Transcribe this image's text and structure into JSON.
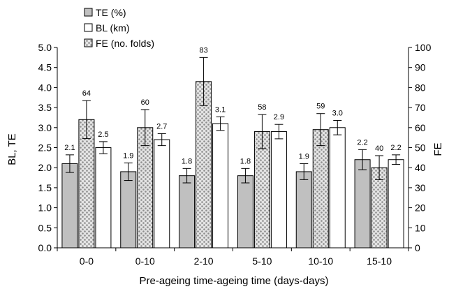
{
  "chart_data": {
    "type": "bar",
    "categories": [
      "0-0",
      "0-10",
      "2-10",
      "5-10",
      "10-10",
      "15-10"
    ],
    "series": [
      {
        "name": "TE (%)",
        "axis": "left",
        "values": [
          2.1,
          1.9,
          1.8,
          1.8,
          1.9,
          2.2
        ],
        "errors": [
          0.22,
          0.22,
          0.18,
          0.18,
          0.2,
          0.25
        ],
        "data_labels": [
          "2.1",
          "1.9",
          "1.8",
          "1.8",
          "1.9",
          "2.2"
        ],
        "color": "#c0c0c0",
        "pattern": "solid"
      },
      {
        "name": "FE (no. folds)",
        "axis": "right",
        "values": [
          64,
          60,
          83,
          58,
          59,
          40
        ],
        "errors": [
          9.5,
          9,
          12,
          8.5,
          8,
          6
        ],
        "data_labels": [
          "64",
          "60",
          "83",
          "58",
          "59",
          "40"
        ],
        "color": "#a8a8a8",
        "pattern": "dots"
      },
      {
        "name": "BL (km)",
        "axis": "left",
        "values": [
          2.5,
          2.7,
          3.1,
          2.9,
          3.0,
          2.2
        ],
        "errors": [
          0.15,
          0.15,
          0.17,
          0.18,
          0.18,
          0.12
        ],
        "data_labels": [
          "2.5",
          "2.7",
          "3.1",
          "2.9",
          "3.0",
          "2.2"
        ],
        "color": "#ffffff",
        "pattern": "solid"
      }
    ],
    "legend": {
      "placement": "top-left",
      "entries": [
        "TE (%)",
        "BL (km)",
        "FE (no. folds)"
      ]
    },
    "xlabel": "Pre-ageing time-ageing time (days-days)",
    "ylabel_left": "BL, TE",
    "ylabel_right": "FE",
    "ylim_left": [
      0,
      5
    ],
    "ylim_right": [
      0,
      100
    ],
    "yticks_left": [
      "0.0",
      "0.5",
      "1.0",
      "1.5",
      "2.0",
      "2.5",
      "3.0",
      "3.5",
      "4.0",
      "4.5",
      "5.0"
    ],
    "yticks_right": [
      "0",
      "10",
      "20",
      "30",
      "40",
      "50",
      "60",
      "70",
      "80",
      "90",
      "100"
    ],
    "grid": false
  }
}
